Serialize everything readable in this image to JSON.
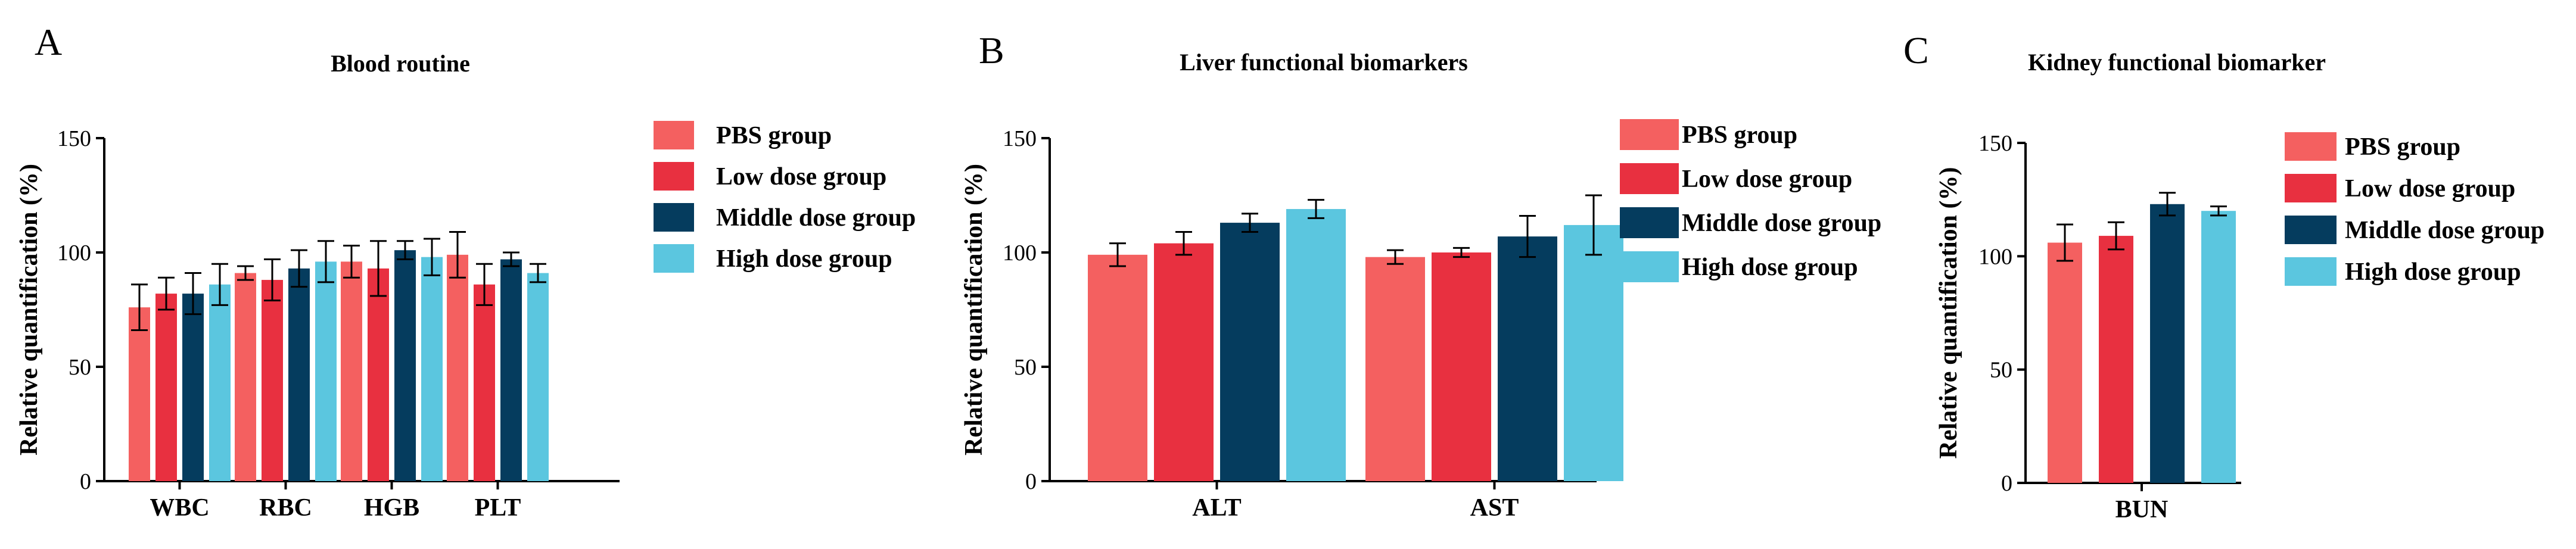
{
  "colors": {
    "pbs": "#f46060",
    "low": "#e83040",
    "middle": "#053c5e",
    "high": "#5bc6df",
    "axis": "#000000"
  },
  "chart_data": [
    {
      "letter": "A",
      "type": "bar",
      "title": "Blood routine",
      "ylabel": "Relative quantification (%)",
      "xlabel": "",
      "ylim": [
        0,
        150
      ],
      "yticks": [
        0,
        50,
        100,
        150
      ],
      "categories": [
        "WBC",
        "RBC",
        "HGB",
        "PLT"
      ],
      "legend_position": "right",
      "series": [
        {
          "name": "PBS group",
          "values": [
            76,
            91,
            96,
            99
          ],
          "errors": [
            10,
            3,
            7,
            10
          ]
        },
        {
          "name": "Low dose group",
          "values": [
            82,
            88,
            93,
            86
          ],
          "errors": [
            7,
            9,
            12,
            9
          ]
        },
        {
          "name": "Middle dose group",
          "values": [
            82,
            93,
            101,
            97
          ],
          "errors": [
            9,
            8,
            4,
            3
          ]
        },
        {
          "name": "High dose group",
          "values": [
            86,
            96,
            98,
            91
          ],
          "errors": [
            9,
            9,
            8,
            4
          ]
        }
      ]
    },
    {
      "letter": "B",
      "type": "bar",
      "title": "Liver functional biomarkers",
      "ylabel": "Relative quantification (%)",
      "xlabel": "",
      "ylim": [
        0,
        150
      ],
      "yticks": [
        0,
        50,
        100,
        150
      ],
      "categories": [
        "ALT",
        "AST"
      ],
      "legend_position": "right",
      "series": [
        {
          "name": "PBS group",
          "values": [
            99,
            98
          ],
          "errors": [
            5,
            3
          ]
        },
        {
          "name": "Low dose group",
          "values": [
            104,
            100
          ],
          "errors": [
            5,
            2
          ]
        },
        {
          "name": "Middle dose group",
          "values": [
            113,
            107
          ],
          "errors": [
            4,
            9
          ]
        },
        {
          "name": "High dose group",
          "values": [
            119,
            112
          ],
          "errors": [
            4,
            13
          ]
        }
      ]
    },
    {
      "letter": "C",
      "type": "bar",
      "title": "Kidney functional biomarker",
      "ylabel": "Relative quantification (%)",
      "xlabel": "",
      "ylim": [
        0,
        150
      ],
      "yticks": [
        0,
        50,
        100,
        150
      ],
      "categories": [
        "BUN"
      ],
      "legend_position": "right",
      "series": [
        {
          "name": "PBS group",
          "values": [
            106
          ],
          "errors": [
            8
          ]
        },
        {
          "name": "Low dose group",
          "values": [
            109
          ],
          "errors": [
            6
          ]
        },
        {
          "name": "Middle dose group",
          "values": [
            123
          ],
          "errors": [
            5
          ]
        },
        {
          "name": "High dose group",
          "values": [
            120
          ],
          "errors": [
            2
          ]
        }
      ]
    }
  ]
}
